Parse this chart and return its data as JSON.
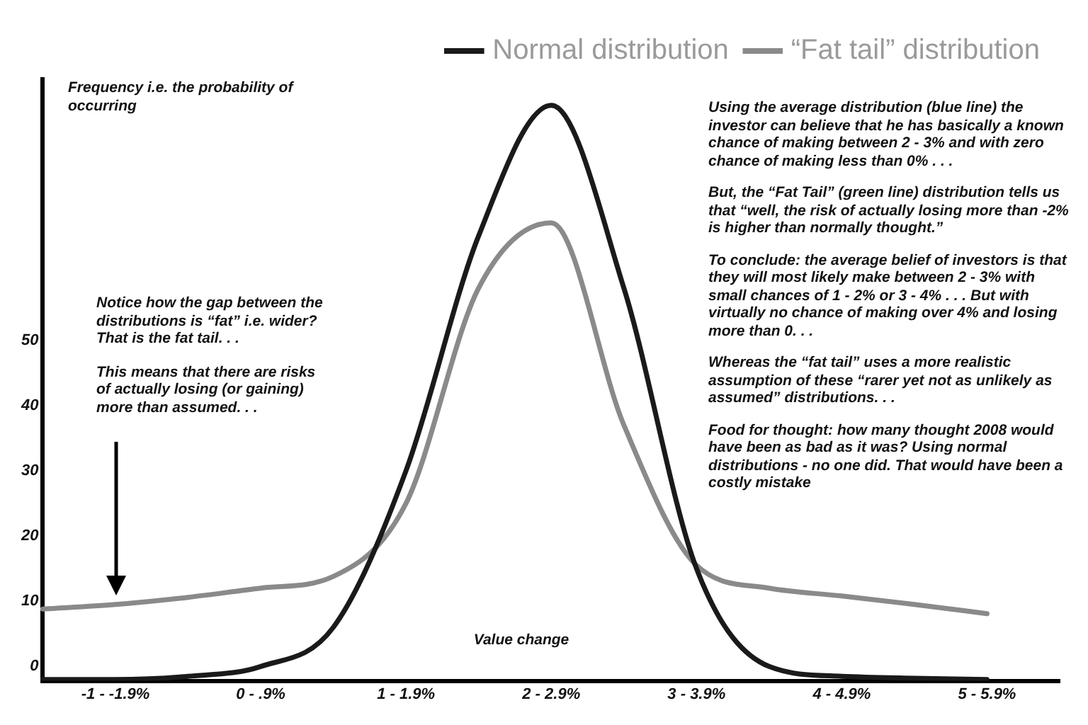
{
  "chart_data": {
    "type": "line",
    "ylabel": "Frequency i.e. the probability of occurring",
    "xlabel": "Value change",
    "categories": [
      null,
      "-1 - -1.9%",
      null,
      "0 - .9%",
      null,
      "1 - 1.9%",
      null,
      "2 - 2.9%",
      null,
      "3 - 3.9%",
      null,
      "4 - 4.9%",
      null,
      "5 - 5.9%",
      null
    ],
    "ylim": [
      -2.2,
      90
    ],
    "yticks": [
      0,
      10,
      20,
      30,
      40,
      50
    ],
    "grid": false,
    "legend": "top right",
    "marker": "none",
    "series": [
      {
        "name": "Normal distribution",
        "color": "#1a1a1a",
        "values": [
          -2,
          -2,
          -1.5,
          0,
          6,
          30,
          66,
          86,
          58,
          15,
          0,
          -1.5,
          -1.8,
          -2,
          null
        ]
      },
      {
        "name": "“Fat tail” distribution",
        "color": "#8a8a8a",
        "values": [
          8.8,
          9.5,
          10.6,
          12,
          13.8,
          25,
          58,
          68,
          37,
          15.5,
          12,
          10.8,
          9.5,
          8.1,
          null
        ]
      }
    ],
    "annotations": [
      "Notice how the gap between the distributions is “fat” i.e. wider? That is the fat tail. . .",
      "This means that there are risks of actually losing (or gaining) more than assumed. . .",
      "Using the average distribution (blue line) the investor can believe that he has basically a known chance of making between 2 - 3% and with zero chance of making less than 0% . . .",
      "But, the “Fat Tail” (green line) distribution tells us that “well, the risk of actually losing more than -2% is higher than normally thought.”",
      "To conclude: the average belief of investors is that they will most likely make between 2 - 3% with small chances of 1 - 2% or 3 - 4% . . . But with virtually no chance of making over 4% and losing more than 0. . .",
      "Whereas the “fat tail” uses a more realistic assumption of these “rarer yet not as unlikely as assumed” distributions. . .",
      "Food for thought: how many thought 2008 would have been as bad as it was? Using normal distributions - no one did. That would have been a costly mistake"
    ]
  }
}
